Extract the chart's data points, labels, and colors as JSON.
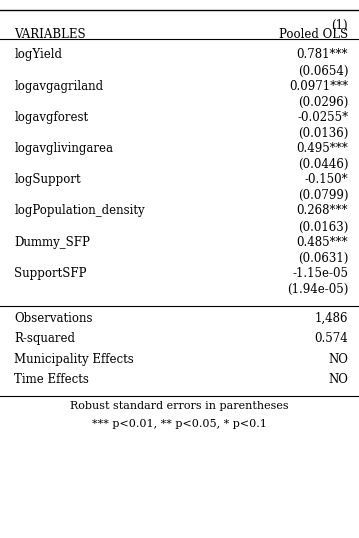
{
  "title_line1": "(1)",
  "title_line2": "Pooled OLS",
  "col_header": "VARIABLES",
  "rows": [
    {
      "var": "logYield",
      "coef": "0.781***",
      "se": "(0.0654)"
    },
    {
      "var": "logavgagriland",
      "coef": "0.0971***",
      "se": "(0.0296)"
    },
    {
      "var": "logavgforest",
      "coef": "-0.0255*",
      "se": "(0.0136)"
    },
    {
      "var": "logavglivingarea",
      "coef": "0.495***",
      "se": "(0.0446)"
    },
    {
      "var": "logSupport",
      "coef": "-0.150*",
      "se": "(0.0799)"
    },
    {
      "var": "logPopulation_density",
      "coef": "0.268***",
      "se": "(0.0163)"
    },
    {
      "var": "Dummy_SFP",
      "coef": "0.485***",
      "se": "(0.0631)"
    },
    {
      "var": "SupportSFP",
      "coef": "-1.15e-05",
      "se": "(1.94e-05)"
    }
  ],
  "stats": [
    {
      "label": "Observations",
      "value": "1,486"
    },
    {
      "label": "R-squared",
      "value": "0.574"
    },
    {
      "label": "Municipality Effects",
      "value": "NO"
    },
    {
      "label": "Time Effects",
      "value": "NO"
    }
  ],
  "footnote1": "Robust standard errors in parentheses",
  "footnote2": "*** p<0.01, ** p<0.05, * p<0.1",
  "bg_color": "#ffffff",
  "text_color": "#000000",
  "font_size": 8.5,
  "header_font_size": 8.5
}
